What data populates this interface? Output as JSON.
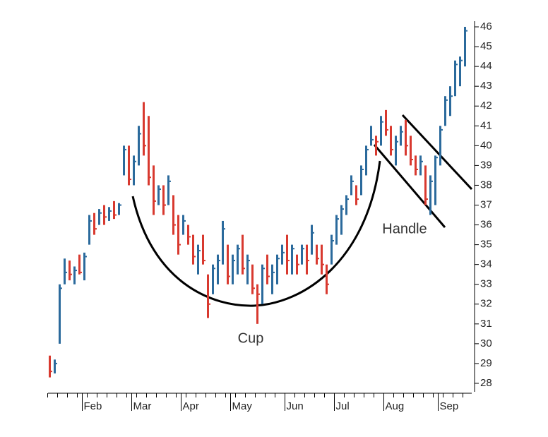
{
  "chart_data": {
    "type": "ohlc",
    "categories": [
      null,
      null,
      null,
      null,
      null,
      null,
      null,
      "Feb",
      null,
      null,
      null,
      null,
      null,
      null,
      null,
      null,
      null,
      "Mar",
      null,
      null,
      null,
      null,
      null,
      null,
      null,
      null,
      null,
      "Apr",
      null,
      null,
      null,
      null,
      null,
      null,
      null,
      null,
      null,
      "May",
      null,
      null,
      null,
      null,
      null,
      null,
      null,
      null,
      null,
      null,
      "Jun",
      null,
      null,
      null,
      null,
      null,
      null,
      null,
      null,
      null,
      "Jul",
      null,
      null,
      null,
      null,
      null,
      null,
      null,
      null,
      null,
      "Aug",
      null,
      null,
      null,
      null,
      null,
      null,
      null,
      null,
      null,
      null,
      "Sep",
      null,
      null,
      null,
      null,
      null
    ],
    "high": [
      29.4,
      29.2,
      33,
      34.3,
      34.2,
      33.9,
      34.5,
      34.6,
      36.5,
      36.6,
      36.8,
      37,
      36.9,
      37.2,
      37.1,
      40,
      40,
      39.5,
      41,
      42.2,
      41.5,
      39,
      38,
      38,
      38.5,
      37.5,
      36.5,
      36.5,
      36,
      35.5,
      35,
      35.5,
      33.5,
      34,
      34.5,
      36.2,
      35,
      34.5,
      35,
      35.5,
      34.5,
      34,
      33,
      34,
      34.5,
      34,
      34.5,
      35,
      35.5,
      35,
      34.5,
      35,
      35,
      36,
      35,
      35,
      34,
      35.5,
      36.5,
      37,
      37.5,
      38.5,
      38,
      39,
      40,
      41,
      40.5,
      41.5,
      41.8,
      41,
      40.5,
      41,
      41.3,
      40.5,
      39.5,
      39.5,
      39,
      38.5,
      39.5,
      41,
      42.5,
      43,
      44.3,
      44.5,
      46
    ],
    "low": [
      28.3,
      28.5,
      30,
      33,
      33.2,
      33,
      33.5,
      33.2,
      35,
      35.5,
      36,
      36,
      36.2,
      36.3,
      36.5,
      38.5,
      38,
      38,
      39,
      39.5,
      38,
      36.5,
      37,
      36.5,
      37,
      35.5,
      34.5,
      35.5,
      35,
      34,
      33.5,
      34,
      31.3,
      32.5,
      33,
      34,
      33,
      33,
      33.5,
      33.5,
      33,
      32.5,
      31,
      32,
      33,
      32.5,
      33,
      34,
      33.5,
      33.5,
      33.5,
      34,
      33.5,
      34.5,
      34,
      33.5,
      32.5,
      34,
      35,
      35.5,
      36.5,
      37.5,
      37,
      37.5,
      38.5,
      40,
      39.5,
      40,
      40.5,
      39.5,
      39,
      40,
      39.5,
      39,
      38.5,
      38.5,
      37,
      36.5,
      37,
      39,
      41,
      41.5,
      42.5,
      43,
      44
    ],
    "close": [
      28.6,
      29,
      32.8,
      33.6,
      33.5,
      33.7,
      33.6,
      34.4,
      36.2,
      35.8,
      36.6,
      36.4,
      36.7,
      36.5,
      37,
      39.8,
      38.3,
      39.2,
      40.6,
      40,
      38.4,
      37.2,
      37.8,
      37,
      38.2,
      36,
      35,
      36.2,
      35.4,
      34.4,
      34.7,
      34.2,
      32,
      33.8,
      34.2,
      35.8,
      33.4,
      34.2,
      34.8,
      33.8,
      34.2,
      32.8,
      32.5,
      33.8,
      33.4,
      33.6,
      34.3,
      34.6,
      34.2,
      34.8,
      34,
      34.8,
      34.2,
      35.6,
      34.3,
      34,
      33,
      35.2,
      36.3,
      36.8,
      37.3,
      38.2,
      37.3,
      38.8,
      39.8,
      40.3,
      40.2,
      41.2,
      40.8,
      39.8,
      40.2,
      40.7,
      40,
      39.3,
      38.8,
      39.2,
      37.3,
      38.2,
      39.4,
      40.8,
      42.3,
      42.5,
      44.1,
      44.3,
      45.8
    ],
    "up_color": "#2b6a9c",
    "down_color": "#d8392f",
    "ylim": [
      27.6,
      46.3
    ],
    "yticks": [
      28,
      29,
      30,
      31,
      32,
      33,
      34,
      35,
      36,
      37,
      38,
      39,
      40,
      41,
      42,
      43,
      44,
      45,
      46
    ],
    "annotations": [
      "Cup",
      "Handle"
    ]
  }
}
